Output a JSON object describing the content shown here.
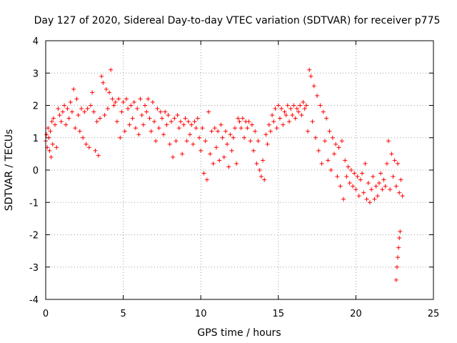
{
  "chart_data": {
    "type": "scatter",
    "title": "Day 127 of 2020, Sidereal Day-to-day VTEC variation (SDTVAR) for receiver p775",
    "xlabel": "GPS time / hours",
    "ylabel": "SDTVAR / TECUs",
    "xlim": [
      0,
      25
    ],
    "ylim": [
      -4,
      4
    ],
    "x_ticks": [
      0,
      5,
      10,
      15,
      20,
      25
    ],
    "y_ticks": [
      -4,
      -3,
      -2,
      -1,
      0,
      1,
      2,
      3,
      4
    ],
    "x_tick_labels": [
      "0",
      "5",
      "10",
      "15",
      "20",
      "25"
    ],
    "y_tick_labels": [
      "-4",
      "-3",
      "-2",
      "-1",
      "0",
      "1",
      "2",
      "3",
      "4"
    ],
    "grid": true,
    "marker": "+",
    "series": [
      {
        "name": "SDTVAR",
        "color": "#ff0000",
        "points": [
          [
            0.0,
            0.9
          ],
          [
            0.05,
            1.1
          ],
          [
            0.1,
            0.7
          ],
          [
            0.15,
            1.3
          ],
          [
            0.2,
            1.0
          ],
          [
            0.25,
            0.6
          ],
          [
            0.3,
            1.2
          ],
          [
            0.35,
            0.4
          ],
          [
            0.4,
            1.5
          ],
          [
            0.45,
            0.8
          ],
          [
            0.5,
            1.6
          ],
          [
            0.6,
            1.4
          ],
          [
            0.7,
            0.7
          ],
          [
            0.8,
            1.9
          ],
          [
            0.9,
            1.7
          ],
          [
            1.0,
            1.5
          ],
          [
            1.1,
            1.8
          ],
          [
            1.2,
            2.0
          ],
          [
            1.3,
            1.4
          ],
          [
            1.4,
            1.9
          ],
          [
            1.5,
            1.6
          ],
          [
            1.6,
            2.1
          ],
          [
            1.7,
            1.8
          ],
          [
            1.8,
            2.5
          ],
          [
            1.9,
            1.3
          ],
          [
            2.0,
            2.2
          ],
          [
            2.1,
            1.7
          ],
          [
            2.2,
            1.2
          ],
          [
            2.3,
            1.9
          ],
          [
            2.4,
            1.0
          ],
          [
            2.5,
            1.8
          ],
          [
            2.6,
            0.8
          ],
          [
            2.7,
            1.9
          ],
          [
            2.8,
            0.7
          ],
          [
            2.9,
            2.0
          ],
          [
            3.0,
            2.4
          ],
          [
            3.1,
            1.8
          ],
          [
            3.2,
            0.6
          ],
          [
            3.3,
            1.5
          ],
          [
            3.4,
            0.45
          ],
          [
            3.5,
            1.6
          ],
          [
            3.6,
            2.9
          ],
          [
            3.7,
            2.7
          ],
          [
            3.8,
            1.7
          ],
          [
            3.9,
            2.5
          ],
          [
            4.0,
            1.9
          ],
          [
            4.1,
            2.4
          ],
          [
            4.2,
            3.1
          ],
          [
            4.3,
            2.2
          ],
          [
            4.4,
            2.0
          ],
          [
            4.5,
            2.1
          ],
          [
            4.6,
            1.5
          ],
          [
            4.7,
            2.2
          ],
          [
            4.8,
            1.0
          ],
          [
            4.9,
            1.8
          ],
          [
            5.0,
            2.1
          ],
          [
            5.1,
            1.2
          ],
          [
            5.2,
            2.2
          ],
          [
            5.3,
            1.9
          ],
          [
            5.4,
            1.4
          ],
          [
            5.5,
            2.0
          ],
          [
            5.6,
            1.6
          ],
          [
            5.7,
            2.1
          ],
          [
            5.8,
            1.3
          ],
          [
            5.9,
            1.9
          ],
          [
            6.0,
            1.1
          ],
          [
            6.1,
            2.2
          ],
          [
            6.2,
            1.7
          ],
          [
            6.3,
            1.4
          ],
          [
            6.4,
            2.0
          ],
          [
            6.5,
            1.8
          ],
          [
            6.6,
            2.2
          ],
          [
            6.7,
            1.6
          ],
          [
            6.8,
            1.2
          ],
          [
            6.9,
            2.1
          ],
          [
            7.0,
            1.5
          ],
          [
            7.1,
            0.9
          ],
          [
            7.2,
            1.9
          ],
          [
            7.3,
            1.3
          ],
          [
            7.4,
            1.8
          ],
          [
            7.5,
            1.6
          ],
          [
            7.6,
            1.1
          ],
          [
            7.7,
            1.8
          ],
          [
            7.8,
            1.4
          ],
          [
            7.9,
            1.7
          ],
          [
            8.0,
            0.8
          ],
          [
            8.1,
            1.5
          ],
          [
            8.2,
            0.4
          ],
          [
            8.3,
            1.6
          ],
          [
            8.4,
            0.9
          ],
          [
            8.5,
            1.7
          ],
          [
            8.6,
            1.3
          ],
          [
            8.7,
            1.5
          ],
          [
            8.8,
            0.5
          ],
          [
            8.9,
            1.4
          ],
          [
            9.0,
            1.6
          ],
          [
            9.1,
            0.9
          ],
          [
            9.2,
            1.5
          ],
          [
            9.3,
            1.1
          ],
          [
            9.4,
            1.4
          ],
          [
            9.5,
            0.8
          ],
          [
            9.6,
            1.5
          ],
          [
            9.7,
            1.3
          ],
          [
            9.8,
            1.6
          ],
          [
            9.9,
            1.0
          ],
          [
            10.0,
            0.6
          ],
          [
            10.1,
            1.3
          ],
          [
            10.2,
            -0.1
          ],
          [
            10.3,
            0.9
          ],
          [
            10.4,
            -0.3
          ],
          [
            10.5,
            1.8
          ],
          [
            10.6,
            0.5
          ],
          [
            10.7,
            1.2
          ],
          [
            10.8,
            0.2
          ],
          [
            10.9,
            1.3
          ],
          [
            11.0,
            0.7
          ],
          [
            11.1,
            1.2
          ],
          [
            11.2,
            0.3
          ],
          [
            11.3,
            1.4
          ],
          [
            11.4,
            1.0
          ],
          [
            11.5,
            0.4
          ],
          [
            11.6,
            1.2
          ],
          [
            11.7,
            0.8
          ],
          [
            11.8,
            0.1
          ],
          [
            11.9,
            1.1
          ],
          [
            12.0,
            0.6
          ],
          [
            12.1,
            1.0
          ],
          [
            12.2,
            1.3
          ],
          [
            12.3,
            0.2
          ],
          [
            12.4,
            1.6
          ],
          [
            12.5,
            1.5
          ],
          [
            12.6,
            1.3
          ],
          [
            12.7,
            1.6
          ],
          [
            12.8,
            1.0
          ],
          [
            12.9,
            1.5
          ],
          [
            13.0,
            1.3
          ],
          [
            13.1,
            1.5
          ],
          [
            13.2,
            0.9
          ],
          [
            13.3,
            1.4
          ],
          [
            13.4,
            0.6
          ],
          [
            13.5,
            1.2
          ],
          [
            13.6,
            0.2
          ],
          [
            13.7,
            0.9
          ],
          [
            13.8,
            0.0
          ],
          [
            13.9,
            -0.2
          ],
          [
            14.0,
            0.3
          ],
          [
            14.1,
            -0.3
          ],
          [
            14.2,
            1.1
          ],
          [
            14.3,
            0.8
          ],
          [
            14.4,
            1.4
          ],
          [
            14.5,
            1.2
          ],
          [
            14.6,
            1.7
          ],
          [
            14.7,
            1.5
          ],
          [
            14.8,
            1.9
          ],
          [
            14.9,
            1.3
          ],
          [
            15.0,
            2.0
          ],
          [
            15.1,
            1.6
          ],
          [
            15.2,
            1.9
          ],
          [
            15.3,
            1.4
          ],
          [
            15.4,
            1.8
          ],
          [
            15.5,
            1.7
          ],
          [
            15.6,
            2.0
          ],
          [
            15.7,
            1.5
          ],
          [
            15.8,
            1.9
          ],
          [
            15.9,
            1.7
          ],
          [
            16.0,
            2.0
          ],
          [
            16.1,
            1.6
          ],
          [
            16.2,
            1.9
          ],
          [
            16.3,
            1.8
          ],
          [
            16.4,
            2.0
          ],
          [
            16.5,
            1.7
          ],
          [
            16.6,
            2.1
          ],
          [
            16.7,
            1.9
          ],
          [
            16.8,
            2.0
          ],
          [
            16.9,
            1.2
          ],
          [
            17.0,
            3.1
          ],
          [
            17.1,
            2.9
          ],
          [
            17.2,
            1.5
          ],
          [
            17.3,
            2.6
          ],
          [
            17.4,
            1.0
          ],
          [
            17.5,
            2.3
          ],
          [
            17.6,
            0.6
          ],
          [
            17.7,
            2.0
          ],
          [
            17.8,
            0.2
          ],
          [
            17.9,
            1.8
          ],
          [
            18.0,
            0.9
          ],
          [
            18.1,
            1.6
          ],
          [
            18.2,
            0.3
          ],
          [
            18.3,
            1.2
          ],
          [
            18.4,
            0.0
          ],
          [
            18.5,
            1.0
          ],
          [
            18.6,
            0.5
          ],
          [
            18.7,
            0.8
          ],
          [
            18.8,
            -0.2
          ],
          [
            18.9,
            0.7
          ],
          [
            19.0,
            -0.5
          ],
          [
            19.1,
            0.9
          ],
          [
            19.2,
            -0.9
          ],
          [
            19.3,
            0.3
          ],
          [
            19.4,
            -0.2
          ],
          [
            19.5,
            0.1
          ],
          [
            19.6,
            -0.4
          ],
          [
            19.7,
            0.0
          ],
          [
            19.8,
            -0.5
          ],
          [
            19.9,
            -0.1
          ],
          [
            20.0,
            -0.6
          ],
          [
            20.1,
            -0.2
          ],
          [
            20.2,
            -0.8
          ],
          [
            20.3,
            -0.3
          ],
          [
            20.4,
            -0.1
          ],
          [
            20.5,
            -0.7
          ],
          [
            20.6,
            0.2
          ],
          [
            20.7,
            -0.9
          ],
          [
            20.8,
            -0.4
          ],
          [
            20.9,
            -1.0
          ],
          [
            21.0,
            -0.6
          ],
          [
            21.1,
            -0.2
          ],
          [
            21.2,
            -0.9
          ],
          [
            21.3,
            -0.5
          ],
          [
            21.4,
            -0.8
          ],
          [
            21.5,
            -0.4
          ],
          [
            21.6,
            -0.1
          ],
          [
            21.7,
            -0.6
          ],
          [
            21.8,
            -0.3
          ],
          [
            21.9,
            -0.5
          ],
          [
            22.0,
            0.2
          ],
          [
            22.1,
            0.9
          ],
          [
            22.2,
            -0.6
          ],
          [
            22.3,
            0.5
          ],
          [
            22.4,
            -0.2
          ],
          [
            22.5,
            0.3
          ],
          [
            22.6,
            -0.5
          ],
          [
            22.7,
            0.2
          ],
          [
            22.8,
            -0.7
          ],
          [
            22.9,
            -0.3
          ],
          [
            23.0,
            -0.8
          ],
          [
            22.6,
            -3.4
          ],
          [
            22.65,
            -3.0
          ],
          [
            22.7,
            -2.7
          ],
          [
            22.75,
            -2.4
          ],
          [
            22.8,
            -2.1
          ],
          [
            22.85,
            -1.9
          ]
        ]
      }
    ]
  }
}
